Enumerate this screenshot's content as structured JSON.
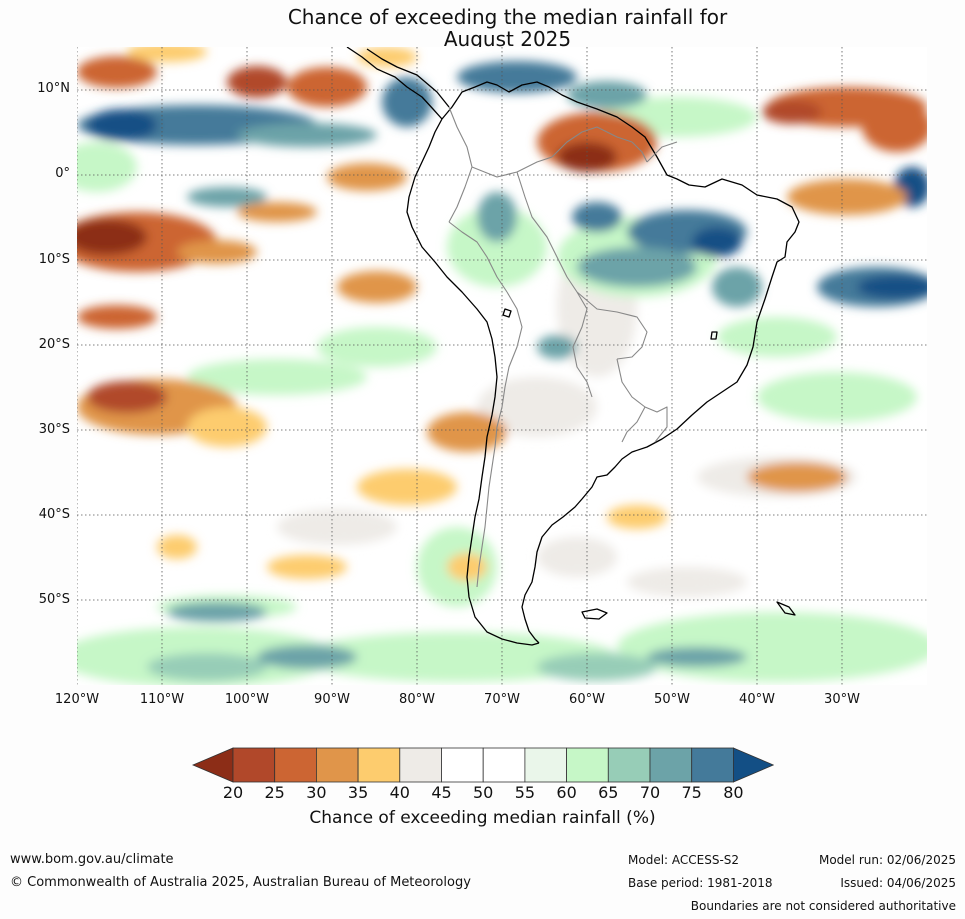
{
  "title_line1": "Chance of exceeding the median rainfall for",
  "title_line2": "August 2025",
  "lat_labels": [
    "10°N",
    "0°",
    "10°S",
    "20°S",
    "30°S",
    "40°S",
    "50°S"
  ],
  "lon_labels": [
    "120°W",
    "110°W",
    "100°W",
    "90°W",
    "80°W",
    "70°W",
    "60°W",
    "50°W",
    "40°W",
    "30°W"
  ],
  "colorbar": {
    "ticks": [
      "20",
      "25",
      "30",
      "35",
      "40",
      "45",
      "50",
      "55",
      "60",
      "65",
      "70",
      "75",
      "80"
    ],
    "colors": [
      "#8c2d17",
      "#b1482a",
      "#cc6533",
      "#e0954a",
      "#fdcc6e",
      "#eeebe7",
      "#ffffff",
      "#ffffff",
      "#eaf6ea",
      "#c6f7c7",
      "#97cdb7",
      "#6ca3a8",
      "#447a9a",
      "#134f85"
    ],
    "label": "Chance of exceeding median rainfall (%)"
  },
  "footer": {
    "url": "www.bom.gov.au/climate",
    "copyright": "© Commonwealth of Australia 2025, Australian Bureau of Meteorology",
    "model": "Model: ACCESS-S2",
    "model_run": "Model run: 02/06/2025",
    "base_period": "Base period: 1981-2018",
    "issued": "Issued: 04/06/2025",
    "disclaimer": "Boundaries are not considered authoritative"
  }
}
